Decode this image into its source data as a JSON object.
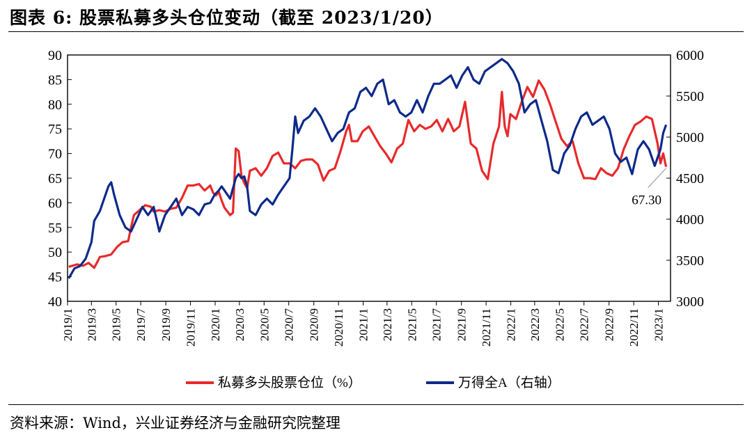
{
  "title": "图表 6:  股票私募多头仓位变动（截至 2023/1/20）",
  "source": "资料来源：Wind，兴业证券经济与金融研究院整理",
  "colors": {
    "position": "#e8292b",
    "index": "#0d2a8a",
    "annotation_line": "#a0a0a0"
  },
  "chart_data": {
    "type": "line",
    "left_axis": {
      "ylim": [
        40,
        90
      ],
      "ticks": [
        "40",
        "45",
        "50",
        "55",
        "60",
        "65",
        "70",
        "75",
        "80",
        "85",
        "90"
      ]
    },
    "right_axis": {
      "ylim": [
        3000,
        6000
      ],
      "ticks": [
        "3000",
        "3500",
        "4000",
        "4500",
        "5000",
        "5500",
        "6000"
      ]
    },
    "x_range": [
      "2019-01-01",
      "2023-01-31"
    ],
    "x_tick_labels": [
      "2019/1",
      "2019/3",
      "2019/5",
      "2019/7",
      "2019/9",
      "2019/11",
      "2020/1",
      "2020/3",
      "2020/5",
      "2020/7",
      "2020/9",
      "2020/11",
      "2021/1",
      "2021/3",
      "2021/5",
      "2021/7",
      "2021/9",
      "2021/11",
      "2022/1",
      "2022/3",
      "2022/5",
      "2022/7",
      "2022/9",
      "2022/11",
      "2023/1"
    ],
    "x_tick_dates": [
      "2019-01-01",
      "2019-03-01",
      "2019-05-01",
      "2019-07-01",
      "2019-09-01",
      "2019-11-01",
      "2020-01-01",
      "2020-03-01",
      "2020-05-01",
      "2020-07-01",
      "2020-09-01",
      "2020-11-01",
      "2021-01-01",
      "2021-03-01",
      "2021-05-01",
      "2021-07-01",
      "2021-09-01",
      "2021-11-01",
      "2022-01-01",
      "2022-03-01",
      "2022-05-01",
      "2022-07-01",
      "2022-09-01",
      "2022-11-01",
      "2023-01-01"
    ],
    "annotation": {
      "text": "67.30",
      "x": "2023-01-20",
      "y": 67.3
    },
    "legend_position": "bottom",
    "series": [
      {
        "name": "私募多头股票仓位（%）",
        "axis": "left",
        "points": [
          [
            "2019-01-04",
            47
          ],
          [
            "2019-01-25",
            47.5
          ],
          [
            "2019-02-08",
            47.2
          ],
          [
            "2019-02-22",
            47.8
          ],
          [
            "2019-03-08",
            46.8
          ],
          [
            "2019-03-22",
            49
          ],
          [
            "2019-04-05",
            49.2
          ],
          [
            "2019-04-19",
            49.5
          ],
          [
            "2019-05-03",
            51
          ],
          [
            "2019-05-17",
            52
          ],
          [
            "2019-05-31",
            52.2
          ],
          [
            "2019-06-07",
            55
          ],
          [
            "2019-06-14",
            57.5
          ],
          [
            "2019-06-28",
            58.5
          ],
          [
            "2019-07-12",
            59.5
          ],
          [
            "2019-07-26",
            59.2
          ],
          [
            "2019-08-02",
            58.2
          ],
          [
            "2019-08-16",
            58.5
          ],
          [
            "2019-08-30",
            58.2
          ],
          [
            "2019-09-13",
            58.8
          ],
          [
            "2019-09-27",
            59
          ],
          [
            "2019-10-11",
            61
          ],
          [
            "2019-10-25",
            63.5
          ],
          [
            "2019-11-08",
            63.5
          ],
          [
            "2019-11-22",
            63.8
          ],
          [
            "2019-12-06",
            62.5
          ],
          [
            "2019-12-20",
            63.5
          ],
          [
            "2019-12-27",
            62
          ],
          [
            "2020-01-03",
            61.5
          ],
          [
            "2020-01-10",
            62.2
          ],
          [
            "2020-01-17",
            60.5
          ],
          [
            "2020-01-24",
            59
          ],
          [
            "2020-02-07",
            57.5
          ],
          [
            "2020-02-14",
            58
          ],
          [
            "2020-02-21",
            71
          ],
          [
            "2020-02-28",
            70.5
          ],
          [
            "2020-03-06",
            65.5
          ],
          [
            "2020-03-13",
            64
          ],
          [
            "2020-03-20",
            63
          ],
          [
            "2020-03-27",
            66.5
          ],
          [
            "2020-04-10",
            67
          ],
          [
            "2020-04-24",
            65.5
          ],
          [
            "2020-05-08",
            67
          ],
          [
            "2020-05-22",
            69.5
          ],
          [
            "2020-06-05",
            70.2
          ],
          [
            "2020-06-19",
            68
          ],
          [
            "2020-07-03",
            68
          ],
          [
            "2020-07-17",
            67
          ],
          [
            "2020-07-31",
            68.5
          ],
          [
            "2020-08-14",
            68.8
          ],
          [
            "2020-08-28",
            68.8
          ],
          [
            "2020-09-11",
            67.8
          ],
          [
            "2020-09-25",
            64.5
          ],
          [
            "2020-10-09",
            66.5
          ],
          [
            "2020-10-23",
            67
          ],
          [
            "2020-11-06",
            70.5
          ],
          [
            "2020-11-20",
            74.5
          ],
          [
            "2020-11-27",
            75.8
          ],
          [
            "2020-12-04",
            72.5
          ],
          [
            "2020-12-18",
            72.5
          ],
          [
            "2020-12-31",
            74.5
          ],
          [
            "2021-01-15",
            75.5
          ],
          [
            "2021-01-29",
            73.5
          ],
          [
            "2021-02-12",
            71.5
          ],
          [
            "2021-02-26",
            70
          ],
          [
            "2021-03-12",
            68.2
          ],
          [
            "2021-03-26",
            71
          ],
          [
            "2021-04-09",
            72
          ],
          [
            "2021-04-23",
            76.8
          ],
          [
            "2021-05-07",
            74.5
          ],
          [
            "2021-05-21",
            75.8
          ],
          [
            "2021-06-04",
            75
          ],
          [
            "2021-06-18",
            75.5
          ],
          [
            "2021-07-02",
            76.8
          ],
          [
            "2021-07-16",
            74.5
          ],
          [
            "2021-07-30",
            77
          ],
          [
            "2021-08-06",
            75.8
          ],
          [
            "2021-08-13",
            74.5
          ],
          [
            "2021-08-27",
            75.5
          ],
          [
            "2021-09-10",
            80.5
          ],
          [
            "2021-09-24",
            72
          ],
          [
            "2021-10-08",
            71
          ],
          [
            "2021-10-22",
            66.5
          ],
          [
            "2021-11-05",
            64.8
          ],
          [
            "2021-11-19",
            72
          ],
          [
            "2021-12-03",
            75.5
          ],
          [
            "2021-12-10",
            82.5
          ],
          [
            "2021-12-17",
            75.5
          ],
          [
            "2021-12-24",
            73.5
          ],
          [
            "2021-12-31",
            78
          ],
          [
            "2022-01-14",
            77
          ],
          [
            "2022-01-28",
            80.5
          ],
          [
            "2022-02-11",
            83.5
          ],
          [
            "2022-02-25",
            81.5
          ],
          [
            "2022-03-11",
            84.8
          ],
          [
            "2022-03-25",
            83
          ],
          [
            "2022-04-08",
            80
          ],
          [
            "2022-04-22",
            76.5
          ],
          [
            "2022-05-06",
            73
          ],
          [
            "2022-05-20",
            71.5
          ],
          [
            "2022-06-03",
            72.5
          ],
          [
            "2022-06-17",
            68
          ],
          [
            "2022-07-01",
            65
          ],
          [
            "2022-07-15",
            65
          ],
          [
            "2022-07-29",
            64.8
          ],
          [
            "2022-08-12",
            67
          ],
          [
            "2022-08-26",
            66
          ],
          [
            "2022-09-09",
            65.5
          ],
          [
            "2022-09-23",
            67
          ],
          [
            "2022-10-07",
            70.8
          ],
          [
            "2022-10-21",
            73.5
          ],
          [
            "2022-11-04",
            75.8
          ],
          [
            "2022-11-18",
            76.5
          ],
          [
            "2022-12-02",
            77.5
          ],
          [
            "2022-12-16",
            77
          ],
          [
            "2022-12-30",
            72
          ],
          [
            "2023-01-06",
            68
          ],
          [
            "2023-01-13",
            70
          ],
          [
            "2023-01-20",
            67.3
          ]
        ]
      },
      {
        "name": "万得全A（右轴）",
        "axis": "right",
        "points": [
          [
            "2019-01-04",
            3280
          ],
          [
            "2019-01-18",
            3400
          ],
          [
            "2019-02-01",
            3430
          ],
          [
            "2019-02-15",
            3520
          ],
          [
            "2019-03-01",
            3720
          ],
          [
            "2019-03-08",
            3980
          ],
          [
            "2019-03-22",
            4100
          ],
          [
            "2019-04-05",
            4300
          ],
          [
            "2019-04-12",
            4400
          ],
          [
            "2019-04-19",
            4450
          ],
          [
            "2019-04-26",
            4300
          ],
          [
            "2019-05-10",
            4050
          ],
          [
            "2019-05-24",
            3900
          ],
          [
            "2019-06-07",
            3850
          ],
          [
            "2019-06-21",
            4000
          ],
          [
            "2019-07-05",
            4150
          ],
          [
            "2019-07-19",
            4050
          ],
          [
            "2019-08-02",
            4150
          ],
          [
            "2019-08-16",
            3850
          ],
          [
            "2019-08-30",
            4050
          ],
          [
            "2019-09-13",
            4150
          ],
          [
            "2019-09-27",
            4250
          ],
          [
            "2019-10-11",
            4050
          ],
          [
            "2019-10-25",
            4150
          ],
          [
            "2019-11-08",
            4120
          ],
          [
            "2019-11-22",
            4050
          ],
          [
            "2019-12-06",
            4180
          ],
          [
            "2019-12-20",
            4200
          ],
          [
            "2019-12-31",
            4300
          ],
          [
            "2020-01-10",
            4350
          ],
          [
            "2020-01-17",
            4400
          ],
          [
            "2020-01-24",
            4350
          ],
          [
            "2020-02-07",
            4250
          ],
          [
            "2020-02-21",
            4500
          ],
          [
            "2020-02-28",
            4550
          ],
          [
            "2020-03-06",
            4500
          ],
          [
            "2020-03-13",
            4520
          ],
          [
            "2020-03-20",
            4400
          ],
          [
            "2020-03-27",
            4100
          ],
          [
            "2020-04-10",
            4050
          ],
          [
            "2020-04-24",
            4180
          ],
          [
            "2020-05-08",
            4250
          ],
          [
            "2020-05-22",
            4180
          ],
          [
            "2020-06-05",
            4300
          ],
          [
            "2020-06-19",
            4400
          ],
          [
            "2020-07-03",
            4500
          ],
          [
            "2020-07-10",
            4850
          ],
          [
            "2020-07-17",
            5250
          ],
          [
            "2020-07-24",
            5050
          ],
          [
            "2020-08-07",
            5200
          ],
          [
            "2020-08-21",
            5250
          ],
          [
            "2020-09-04",
            5350
          ],
          [
            "2020-09-18",
            5250
          ],
          [
            "2020-10-02",
            5100
          ],
          [
            "2020-10-16",
            4950
          ],
          [
            "2020-10-30",
            5050
          ],
          [
            "2020-11-13",
            5100
          ],
          [
            "2020-11-27",
            5300
          ],
          [
            "2020-12-11",
            5350
          ],
          [
            "2020-12-25",
            5550
          ],
          [
            "2021-01-08",
            5600
          ],
          [
            "2021-01-22",
            5500
          ],
          [
            "2021-02-05",
            5650
          ],
          [
            "2021-02-19",
            5700
          ],
          [
            "2021-03-05",
            5400
          ],
          [
            "2021-03-19",
            5450
          ],
          [
            "2021-04-02",
            5300
          ],
          [
            "2021-04-16",
            5250
          ],
          [
            "2021-04-30",
            5300
          ],
          [
            "2021-05-14",
            5450
          ],
          [
            "2021-05-28",
            5300
          ],
          [
            "2021-06-11",
            5500
          ],
          [
            "2021-06-25",
            5650
          ],
          [
            "2021-07-09",
            5650
          ],
          [
            "2021-07-23",
            5700
          ],
          [
            "2021-08-06",
            5750
          ],
          [
            "2021-08-20",
            5600
          ],
          [
            "2021-09-03",
            5750
          ],
          [
            "2021-09-17",
            5850
          ],
          [
            "2021-10-01",
            5700
          ],
          [
            "2021-10-15",
            5650
          ],
          [
            "2021-10-29",
            5800
          ],
          [
            "2021-11-12",
            5850
          ],
          [
            "2021-11-26",
            5900
          ],
          [
            "2021-12-10",
            5950
          ],
          [
            "2021-12-24",
            5900
          ],
          [
            "2022-01-07",
            5800
          ],
          [
            "2022-01-21",
            5650
          ],
          [
            "2022-02-04",
            5300
          ],
          [
            "2022-02-18",
            5400
          ],
          [
            "2022-03-04",
            5450
          ],
          [
            "2022-03-18",
            5200
          ],
          [
            "2022-04-01",
            4950
          ],
          [
            "2022-04-15",
            4600
          ],
          [
            "2022-04-29",
            4560
          ],
          [
            "2022-05-13",
            4800
          ],
          [
            "2022-05-27",
            4900
          ],
          [
            "2022-06-10",
            5100
          ],
          [
            "2022-06-24",
            5250
          ],
          [
            "2022-07-08",
            5300
          ],
          [
            "2022-07-22",
            5150
          ],
          [
            "2022-08-05",
            5200
          ],
          [
            "2022-08-19",
            5250
          ],
          [
            "2022-09-02",
            5100
          ],
          [
            "2022-09-16",
            4800
          ],
          [
            "2022-09-30",
            4700
          ],
          [
            "2022-10-14",
            4750
          ],
          [
            "2022-10-28",
            4550
          ],
          [
            "2022-11-11",
            4850
          ],
          [
            "2022-11-25",
            4950
          ],
          [
            "2022-12-09",
            4850
          ],
          [
            "2022-12-23",
            4650
          ],
          [
            "2023-01-06",
            4850
          ],
          [
            "2023-01-13",
            5050
          ],
          [
            "2023-01-20",
            5150
          ]
        ]
      }
    ]
  }
}
